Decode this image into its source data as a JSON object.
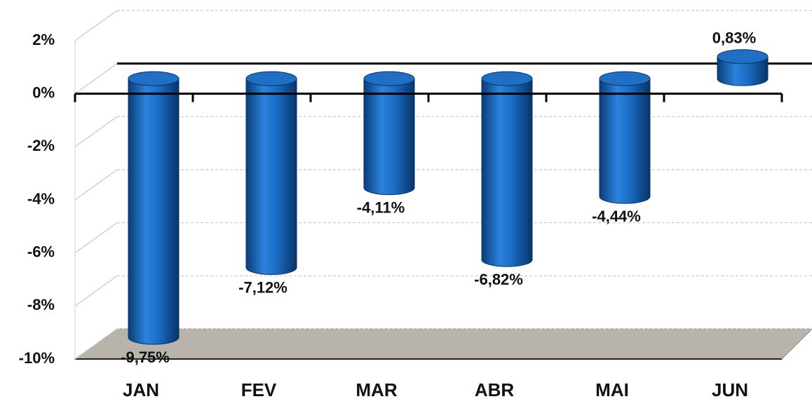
{
  "chart_data": {
    "type": "bar",
    "categories": [
      "JAN",
      "FEV",
      "MAR",
      "ABR",
      "MAI",
      "JUN"
    ],
    "values": [
      -9.75,
      -7.12,
      -4.11,
      -6.82,
      -4.44,
      0.83
    ],
    "value_labels": [
      "-9,75%",
      "-7,12%",
      "-4,11%",
      "-6,82%",
      "-4,44%",
      "0,83%"
    ],
    "color": "#1f6fc5",
    "ylim": [
      -10,
      2
    ],
    "yticks": [
      {
        "value": 2,
        "label": "2%"
      },
      {
        "value": 0,
        "label": "0%"
      },
      {
        "value": -2,
        "label": "-2%"
      },
      {
        "value": -4,
        "label": "-4%"
      },
      {
        "value": -6,
        "label": "-6%"
      },
      {
        "value": -8,
        "label": "-8%"
      },
      {
        "value": -10,
        "label": "-10%"
      }
    ],
    "grid": true
  }
}
